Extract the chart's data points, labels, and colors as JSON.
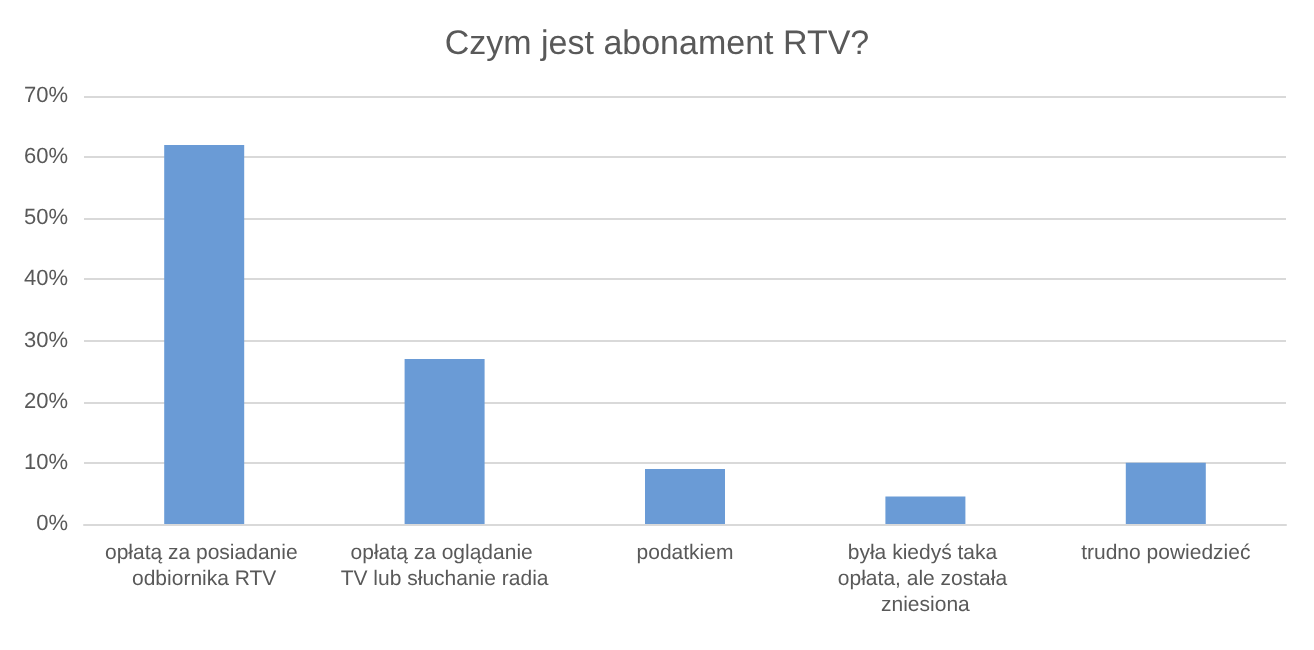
{
  "chart_data": {
    "type": "bar",
    "title": "Czym jest abonament RTV?",
    "categories": [
      "opłatą za posiadanie odbiornika RTV",
      "opłatą za oglądanie TV lub słuchanie radia",
      "podatkiem",
      "była kiedyś taka opłata, ale została zniesiona",
      "trudno powiedzieć"
    ],
    "values": [
      62,
      27,
      9,
      4.5,
      10
    ],
    "color": "#6a9bd6",
    "ylim": [
      0,
      70
    ],
    "yticks": [
      {
        "value": 0,
        "label": "0%"
      },
      {
        "value": 10,
        "label": "10%"
      },
      {
        "value": 20,
        "label": "20%"
      },
      {
        "value": 30,
        "label": "30%"
      },
      {
        "value": 40,
        "label": "40%"
      },
      {
        "value": 50,
        "label": "50%"
      },
      {
        "value": 60,
        "label": "60%"
      },
      {
        "value": 70,
        "label": "70%"
      }
    ],
    "grid": "y"
  }
}
